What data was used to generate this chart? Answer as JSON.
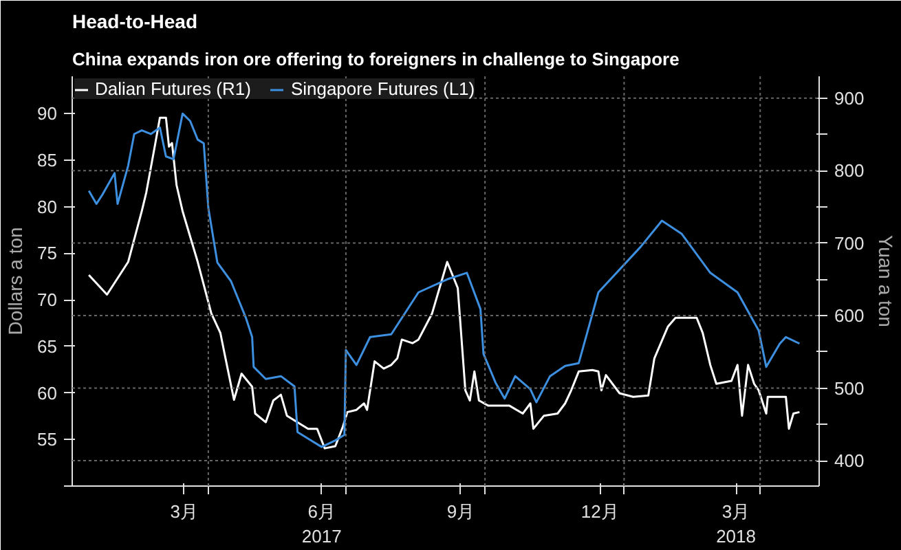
{
  "chart_data": {
    "type": "line",
    "title": "Head-to-Head",
    "subtitle": "China expands iron ore offering to foreigners in challenge to Singapore",
    "ylabel": "Dollars a ton",
    "y2label": "Yuan a ton",
    "xlim": [
      "2017-01-01",
      "2018-05-10"
    ],
    "xticks": [
      {
        "value": "2017-03-16",
        "label": "3月"
      },
      {
        "value": "2017-06-15",
        "label": "6月\n2017"
      },
      {
        "value": "2017-09-15",
        "label": "9月"
      },
      {
        "value": "2017-12-16",
        "label": "12月"
      },
      {
        "value": "2018-03-16",
        "label": "3月\n2018"
      },
      {
        "value": "2017-04-01",
        "label": null
      },
      {
        "value": "2017-07-01",
        "label": null
      },
      {
        "value": "2017-10-01",
        "label": null
      },
      {
        "value": "2018-01-01",
        "label": null
      },
      {
        "value": "2018-04-01",
        "label": null
      }
    ],
    "ylim": [
      50,
      94
    ],
    "yticks": [
      {
        "value": 50,
        "label": null
      },
      55,
      60,
      65,
      70,
      75,
      80,
      85,
      90
    ],
    "y2lim": [
      365,
      930
    ],
    "y2ticks": [
      400,
      {
        "value": 450,
        "label": null
      },
      500,
      {
        "value": 550,
        "label": null
      },
      600,
      {
        "value": 650,
        "label": null
      },
      700,
      {
        "value": 750,
        "label": null
      },
      800,
      {
        "value": 850,
        "label": null
      },
      900
    ],
    "grid": true,
    "legend": "top left",
    "line_style": "solid",
    "marker": "none",
    "series": [
      {
        "name": "Dalian Futures (R1)",
        "color": "#ffffff",
        "axis": "y2",
        "x": [
          "2017-01-12",
          "2017-01-24",
          "2017-02-07",
          "2017-02-16",
          "2017-02-19",
          "2017-02-25",
          "2017-02-28",
          "2017-03-04",
          "2017-03-06",
          "2017-03-08",
          "2017-03-11",
          "2017-03-15",
          "2017-03-25",
          "2017-04-03",
          "2017-04-09",
          "2017-04-12",
          "2017-04-18",
          "2017-04-23",
          "2017-04-30",
          "2017-05-02",
          "2017-05-09",
          "2017-05-14",
          "2017-05-19",
          "2017-05-23",
          "2017-05-30",
          "2017-06-06",
          "2017-06-12",
          "2017-06-17",
          "2017-06-24",
          "2017-06-29",
          "2017-07-02",
          "2017-07-08",
          "2017-07-13",
          "2017-07-15",
          "2017-07-20",
          "2017-07-26",
          "2017-07-31",
          "2017-08-04",
          "2017-08-07",
          "2017-08-14",
          "2017-08-18",
          "2017-08-27",
          "2017-09-06",
          "2017-09-13",
          "2017-09-18",
          "2017-09-21",
          "2017-09-24",
          "2017-09-27",
          "2017-10-03",
          "2017-10-17",
          "2017-10-26",
          "2017-10-31",
          "2017-11-02",
          "2017-11-09",
          "2017-11-18",
          "2017-11-23",
          "2017-11-27",
          "2017-12-02",
          "2017-12-11",
          "2017-12-15",
          "2017-12-17",
          "2017-12-20",
          "2017-12-29",
          "2018-01-07",
          "2018-01-17",
          "2018-01-21",
          "2018-01-30",
          "2018-02-04",
          "2018-02-18",
          "2018-02-22",
          "2018-02-27",
          "2018-03-03",
          "2018-03-13",
          "2018-03-17",
          "2018-03-20",
          "2018-03-24",
          "2018-03-28",
          "2018-03-31",
          "2018-04-05",
          "2018-04-06",
          "2018-04-18",
          "2018-04-20",
          "2018-04-23",
          "2018-04-27"
        ],
        "values": [
          656,
          629,
          674,
          744,
          770,
          838,
          873,
          873,
          833,
          838,
          780,
          744,
          674,
          603,
          576,
          545,
          484,
          520,
          502,
          465,
          453,
          483,
          491,
          462,
          453,
          444,
          444,
          417,
          420,
          447,
          467,
          470,
          479,
          470,
          537,
          527,
          532,
          541,
          567,
          562,
          567,
          603,
          674,
          638,
          497,
          483,
          523,
          483,
          476,
          476,
          465,
          479,
          444,
          462,
          465,
          479,
          497,
          523,
          525,
          523,
          497,
          518,
          493,
          488,
          490,
          541,
          585,
          597,
          597,
          576,
          532,
          506,
          510,
          532,
          462,
          532,
          506,
          497,
          465,
          488,
          488,
          444,
          465,
          467
        ]
      },
      {
        "name": "Singapore Futures (L1)",
        "color": "#3d8fe0",
        "x": [
          "2017-01-12",
          "2017-01-17",
          "2017-01-21",
          "2017-01-29",
          "2017-01-31",
          "2017-02-07",
          "2017-02-11",
          "2017-02-16",
          "2017-02-22",
          "2017-02-28",
          "2017-03-04",
          "2017-03-09",
          "2017-03-15",
          "2017-03-20",
          "2017-03-25",
          "2017-03-29",
          "2017-04-01",
          "2017-04-07",
          "2017-04-16",
          "2017-04-26",
          "2017-04-30",
          "2017-05-01",
          "2017-05-09",
          "2017-05-19",
          "2017-05-28",
          "2017-05-30",
          "2017-06-06",
          "2017-06-15",
          "2017-06-24",
          "2017-06-30",
          "2017-07-01",
          "2017-07-08",
          "2017-07-17",
          "2017-07-31",
          "2017-08-18",
          "2017-09-06",
          "2017-09-19",
          "2017-09-28",
          "2017-09-30",
          "2017-10-08",
          "2017-10-14",
          "2017-10-21",
          "2017-10-31",
          "2017-11-04",
          "2017-11-13",
          "2017-11-23",
          "2017-12-02",
          "2017-12-15",
          "2018-01-12",
          "2018-01-26",
          "2018-02-08",
          "2018-02-27",
          "2018-03-17",
          "2018-03-31",
          "2018-04-05",
          "2018-04-14",
          "2018-04-18",
          "2018-04-27"
        ],
        "values": [
          81.7,
          80.3,
          81.3,
          83.6,
          80.3,
          84.4,
          87.8,
          88.2,
          87.8,
          88.5,
          85.4,
          85.1,
          90,
          89.2,
          87.2,
          86.8,
          79.9,
          74,
          72,
          68,
          66,
          62.8,
          61.5,
          61.8,
          60.7,
          55.8,
          55.1,
          54.2,
          54.9,
          55.5,
          64.6,
          63,
          66,
          66.3,
          70.8,
          72.2,
          72.9,
          69,
          64.2,
          61.1,
          59.4,
          61.8,
          60.4,
          59,
          61.8,
          62.9,
          63.2,
          70.8,
          75.7,
          78.5,
          77.1,
          72.9,
          70.8,
          66.7,
          62.8,
          65.3,
          66,
          65.3
        ]
      }
    ]
  }
}
